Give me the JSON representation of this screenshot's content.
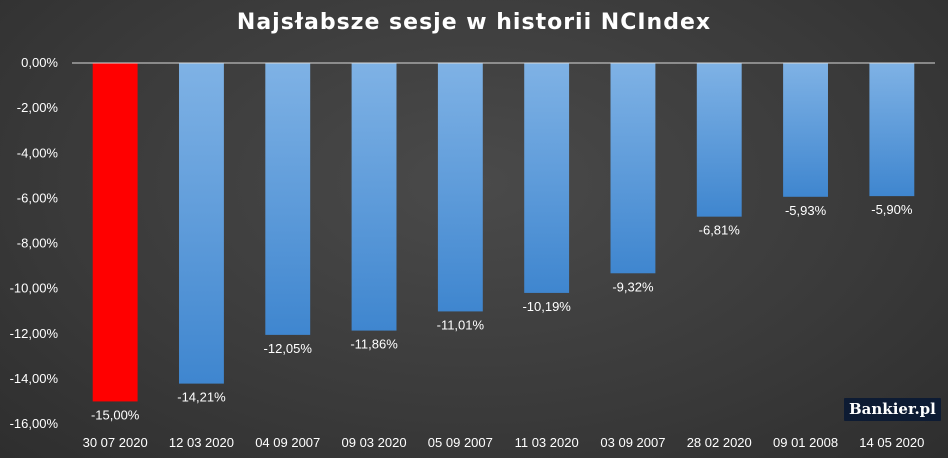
{
  "chart_data": {
    "type": "bar",
    "title": "Najsłabsze sesje w historii NCIndex",
    "categories": [
      "30 07 2020",
      "12 03 2020",
      "04 09 2007",
      "09 03 2020",
      "05 09 2007",
      "11 03 2020",
      "03 09 2007",
      "28 02 2020",
      "09 01 2008",
      "14 05 2020"
    ],
    "values": [
      -15.0,
      -14.21,
      -12.05,
      -11.86,
      -11.01,
      -10.19,
      -9.32,
      -6.81,
      -5.93,
      -5.9
    ],
    "data_labels": [
      "-15,00%",
      "-14,21%",
      "-12,05%",
      "-11,86%",
      "-11,01%",
      "-10,19%",
      "-9,32%",
      "-6,81%",
      "-5,93%",
      "-5,90%"
    ],
    "y_ticks": [
      0,
      -2,
      -4,
      -6,
      -8,
      -10,
      -12,
      -14,
      -16
    ],
    "y_tick_labels": [
      "0,00%",
      "-2,00%",
      "-4,00%",
      "-6,00%",
      "-8,00%",
      "-10,00%",
      "-12,00%",
      "-14,00%",
      "-16,00%"
    ],
    "ylim": [
      -16,
      0
    ],
    "grid": false,
    "colors": {
      "highlight": "#ff0000",
      "bar_top": "#7fb2e5",
      "bar_bottom": "#3f86cf",
      "axis": "#d9d9d9"
    },
    "highlight_index": 0
  },
  "logo": {
    "text": "Bankier.pl"
  }
}
